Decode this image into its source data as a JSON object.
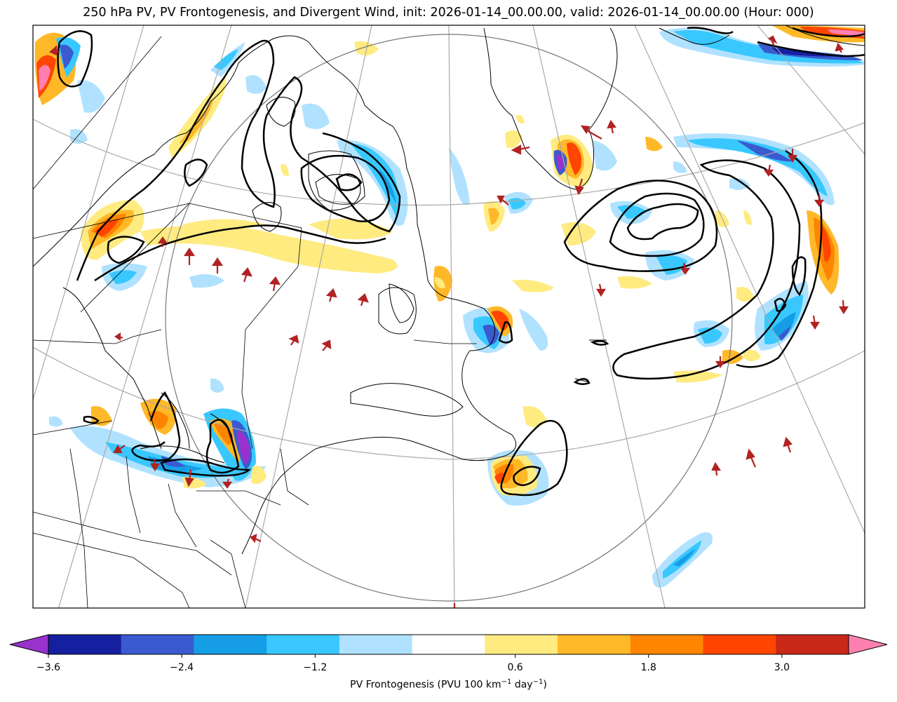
{
  "title": "250 hPa PV, PV Frontogenesis, and Divergent Wind, init: 2026-01-14_00.00.00, valid: 2026-01-14_00.00.00 (Hour: 000)",
  "colorbar": {
    "label_main": "PV Frontogenesis (PVU 100 km",
    "label_exp1": "−1",
    "label_mid": " day",
    "label_exp2": "−1",
    "label_end": ")",
    "range": [
      -3.6,
      3.6
    ],
    "step": 0.6,
    "extend": "both",
    "under_color": "#9932cc",
    "over_color": "#ff80b0",
    "colors": [
      "#1520a0",
      "#3a5bd0",
      "#159ee6",
      "#38c8ff",
      "#b0e2ff",
      "#ffffff",
      "#ffeb80",
      "#ffb828",
      "#ff8500",
      "#ff4500",
      "#c82818"
    ],
    "ticks": [
      {
        "value": -3.6,
        "label": "−3.6"
      },
      {
        "value": -2.4,
        "label": "−2.4"
      },
      {
        "value": -1.2,
        "label": "−1.2"
      },
      {
        "value": 0.6,
        "label": "0.6"
      },
      {
        "value": 1.8,
        "label": "1.8"
      },
      {
        "value": 3.0,
        "label": "3.0"
      }
    ]
  },
  "map": {
    "projection": "polar stereographic",
    "contour_color": "#000000",
    "vector_color": "#b22222",
    "gridline_color": "#aaaaaa"
  }
}
